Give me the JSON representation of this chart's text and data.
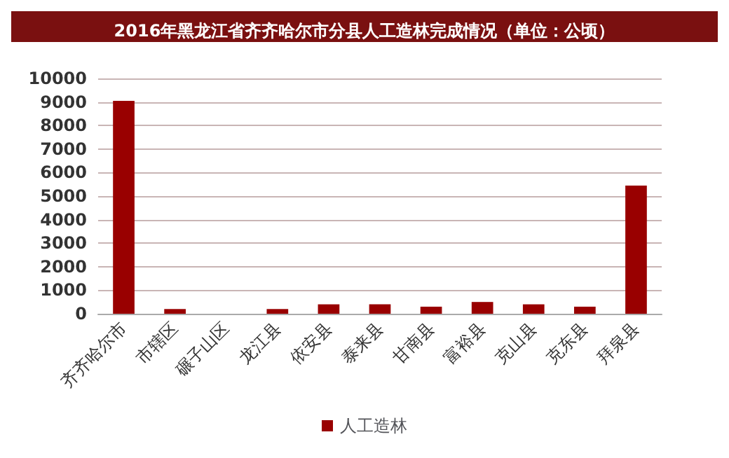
{
  "chart_data": {
    "type": "bar",
    "title": "2016年黑龙江省齐齐哈尔市分县人工造林完成情况（单位：公顷）",
    "categories": [
      "齐齐哈尔市",
      "市辖区",
      "碾子山区",
      "龙江县",
      "依安县",
      "泰来县",
      "甘南县",
      "富裕县",
      "克山县",
      "克东县",
      "拜泉县"
    ],
    "series": [
      {
        "name": "人工造林",
        "color": "#990000",
        "values": [
          9050,
          200,
          0,
          200,
          400,
          400,
          300,
          500,
          400,
          300,
          5450
        ]
      }
    ],
    "ylim": [
      0,
      10000
    ],
    "yticks": [
      0,
      1000,
      2000,
      3000,
      4000,
      5000,
      6000,
      7000,
      8000,
      9000,
      10000
    ],
    "grid": "y",
    "legend": "bottom"
  }
}
